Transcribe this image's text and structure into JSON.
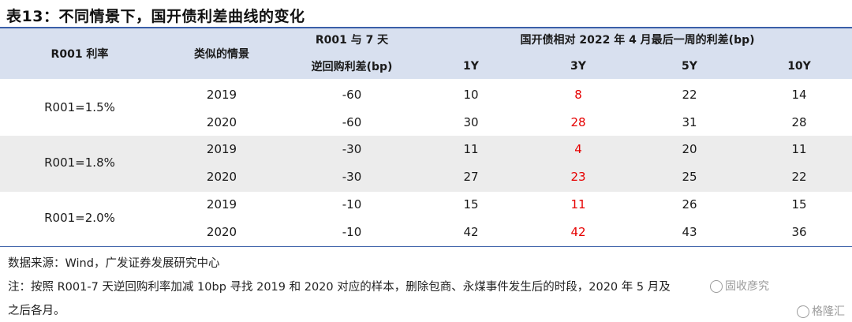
{
  "title": "表13：不同情景下，国开债利差曲线的变化",
  "header": {
    "col_r001": "R001 利率",
    "col_scenario": "类似的情景",
    "col_spread_line1": "R001 与 7 天",
    "col_spread_line2": "逆回购利差(bp)",
    "group_label": "国开债相对 2022 年 4 月最后一周的利差(bp)",
    "tenors": [
      "1Y",
      "3Y",
      "5Y",
      "10Y"
    ]
  },
  "groups": [
    {
      "label": "R001=1.5%",
      "rows": [
        {
          "year": "2019",
          "spread": "-60",
          "y1": "10",
          "y3": "8",
          "y5": "22",
          "y10": "14"
        },
        {
          "year": "2020",
          "spread": "-60",
          "y1": "30",
          "y3": "28",
          "y5": "31",
          "y10": "28"
        }
      ]
    },
    {
      "label": "R001=1.8%",
      "rows": [
        {
          "year": "2019",
          "spread": "-30",
          "y1": "11",
          "y3": "4",
          "y5": "20",
          "y10": "11"
        },
        {
          "year": "2020",
          "spread": "-30",
          "y1": "27",
          "y3": "23",
          "y5": "25",
          "y10": "22"
        }
      ]
    },
    {
      "label": "R001=2.0%",
      "rows": [
        {
          "year": "2019",
          "spread": "-10",
          "y1": "15",
          "y3": "11",
          "y5": "26",
          "y10": "15"
        },
        {
          "year": "2020",
          "spread": "-10",
          "y1": "42",
          "y3": "42",
          "y5": "43",
          "y10": "36"
        }
      ]
    }
  ],
  "colors": {
    "highlight": "#e60000",
    "header_bg": "#d8e0ef",
    "band_bg": "#ececec",
    "rule": "#3a5fa8"
  },
  "source": "数据来源：Wind，广发证券发展研究中心",
  "note_line1": "注：按照 R001-7 天逆回购利率加减 10bp 寻找 2019 和 2020 对应的样本，删除包商、永煤事件发生后的时段，2020 年 5 月及",
  "note_line2": "之后各月。",
  "watermark_1": "固收彦究",
  "watermark_2": "格隆汇"
}
